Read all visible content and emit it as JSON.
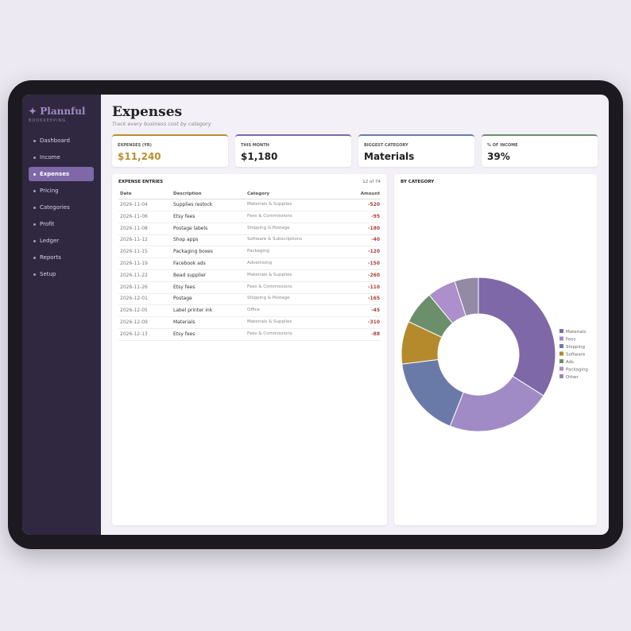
{
  "brand": {
    "name": "Plannful",
    "tagline": "BOOKKEEPING"
  },
  "nav": [
    "Dashboard",
    "Income",
    "Expenses",
    "Pricing",
    "Categories",
    "Profit",
    "Ledger",
    "Reports",
    "Setup"
  ],
  "header": {
    "title": "Expenses",
    "subtitle": "Track every business cost by category"
  },
  "stats": [
    {
      "label": "EXPENSES (YR)",
      "value": "$11,240"
    },
    {
      "label": "THIS MONTH",
      "value": "$1,180"
    },
    {
      "label": "BIGGEST CATEGORY",
      "value": "Materials"
    },
    {
      "label": "% OF INCOME",
      "value": "39%"
    }
  ],
  "table": {
    "title": "EXPENSE ENTRIES",
    "count": "12 of 74",
    "columns": [
      "Date",
      "Description",
      "Category",
      "Amount"
    ],
    "rows": [
      [
        "2026-11-04",
        "Supplies restock",
        "Materials & Supplies",
        "-520"
      ],
      [
        "2026-11-06",
        "Etsy fees",
        "Fees & Commissions",
        "-95"
      ],
      [
        "2026-11-08",
        "Postage labels",
        "Shipping & Postage",
        "-180"
      ],
      [
        "2026-11-12",
        "Shop apps",
        "Software & Subscriptions",
        "-40"
      ],
      [
        "2026-11-15",
        "Packaging boxes",
        "Packaging",
        "-120"
      ],
      [
        "2026-11-19",
        "Facebook ads",
        "Advertising",
        "-150"
      ],
      [
        "2026-11-22",
        "Bead supplier",
        "Materials & Supplies",
        "-260"
      ],
      [
        "2026-11-26",
        "Etsy fees",
        "Fees & Commissions",
        "-110"
      ],
      [
        "2026-12-01",
        "Postage",
        "Shipping & Postage",
        "-165"
      ],
      [
        "2026-12-05",
        "Label printer ink",
        "Office",
        "-45"
      ],
      [
        "2026-12-09",
        "Materials",
        "Materials & Supplies",
        "-310"
      ],
      [
        "2026-12-13",
        "Etsy fees",
        "Fees & Commissions",
        "-88"
      ]
    ]
  },
  "chart_data": {
    "type": "pie",
    "title": "BY CATEGORY",
    "categories": [
      "Materials",
      "Fees",
      "Shipping",
      "Software",
      "Ads",
      "Packaging",
      "Other"
    ],
    "values": [
      34,
      22,
      17,
      9,
      7,
      6,
      5
    ],
    "colors": [
      "#7e68a8",
      "#a08bc6",
      "#6a7aa8",
      "#b48a2c",
      "#6b8f6b",
      "#ad8fcc",
      "#938aa6"
    ]
  }
}
